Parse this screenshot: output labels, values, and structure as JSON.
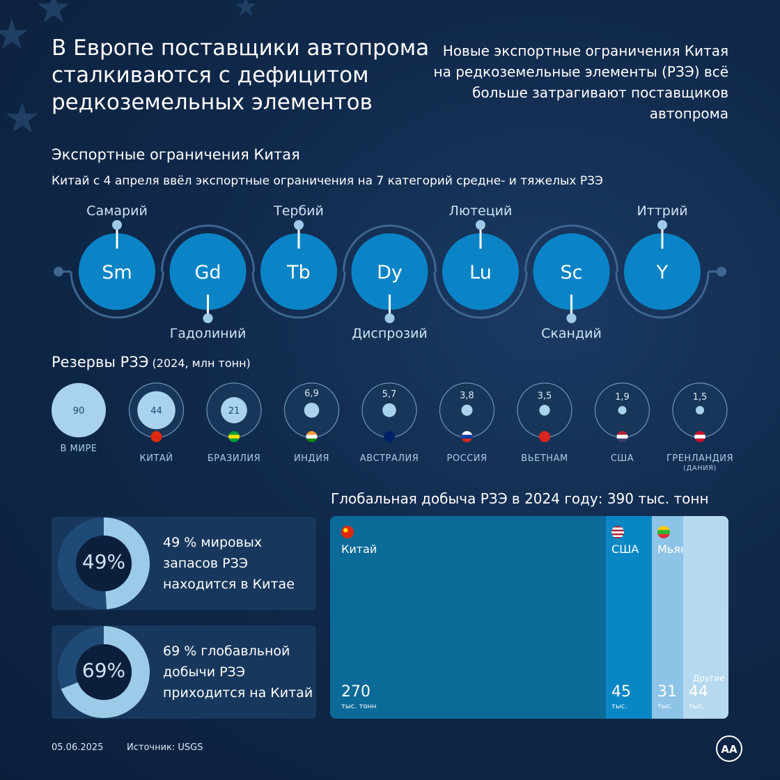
{
  "title": "В Европе поставщики автопрома сталкиваются с дефицитом редкоземельных элементов",
  "intro": "Новые экспортные ограничения Китая на редкоземельные элементы (РЗЭ) всё больше затрагивают поставщиков автопрома",
  "restrictions": {
    "title": "Экспортные ограничения Китая",
    "subtitle": "Китай с 4 апреля ввёл экспортные ограничения на 7 категорий средне- и тяжелых РЗЭ",
    "elements": [
      {
        "symbol": "Sm",
        "name": "Самарий"
      },
      {
        "symbol": "Gd",
        "name": "Гадолиний"
      },
      {
        "symbol": "Tb",
        "name": "Тербий"
      },
      {
        "symbol": "Dy",
        "name": "Диспрозий"
      },
      {
        "symbol": "Lu",
        "name": "Лютеций"
      },
      {
        "symbol": "Sc",
        "name": "Скандий"
      },
      {
        "symbol": "Y",
        "name": "Иттрий"
      }
    ]
  },
  "reserves": {
    "title": "Резервы РЗЭ",
    "unit": "(2024, млн тонн)"
  },
  "production_title": "Глобальная добыча РЗЭ в 2024 году: 390 тыс. тонн",
  "cards": [
    {
      "percent": "49%",
      "text": "49 % мировых запасов РЗЭ находится в Китае",
      "fraction": 0.49
    },
    {
      "percent": "69%",
      "text": "69 % глобавльной добычи РЗЭ приходится на Китай",
      "fraction": 0.69
    }
  ],
  "footer": {
    "date": "05.06.2025",
    "source": "Источник: USGS",
    "logo": "AA"
  },
  "colors": {
    "background": "#10294b",
    "element_circle": "#0a84c6",
    "reserve_fill": "#a8d2ee",
    "china_bar": "#0b6a98",
    "usa_bar": "#0887c4",
    "myanmar_bar": "#8cc3e6",
    "others_bar": "#b5d9ef"
  },
  "chart_data": [
    {
      "type": "bubble",
      "title": "Резервы РЗЭ",
      "unit": "(2024, млн тонн)",
      "categories": [
        "В МИРЕ",
        "КИТАЙ",
        "БРАЗИЛИЯ",
        "ИНДИЯ",
        "АВСТРАЛИЯ",
        "РОССИЯ",
        "ВЬЕТНАМ",
        "США",
        "ГРЕНЛАНДИЯ"
      ],
      "sublabels": [
        "",
        "",
        "",
        "",
        "",
        "",
        "",
        "",
        "(ДАНИЯ)"
      ],
      "values": [
        90,
        44,
        21,
        6.9,
        5.7,
        3.8,
        3.5,
        1.9,
        1.5
      ],
      "value_labels": [
        "90",
        "44",
        "21",
        "6,9",
        "5,7",
        "3,8",
        "3,5",
        "1,9",
        "1,5"
      ],
      "flags": [
        "",
        "china-flag",
        "brazil-flag",
        "india-flag",
        "australia-flag",
        "russia-flag",
        "vietnam-flag",
        "usa-flag",
        "denmark-flag"
      ]
    },
    {
      "type": "treemap",
      "title": "Глобальная добыча РЗЭ в 2024 году: 390 тыс. тонн",
      "total": 390,
      "items": [
        {
          "name": "Китай",
          "value": 270,
          "value_label": "270",
          "unit": "тыс. тонн",
          "flag": "china-flag"
        },
        {
          "name": "США",
          "value": 45,
          "value_label": "45",
          "unit": "тыс.",
          "flag": "usa-flag"
        },
        {
          "name": "Мьянма",
          "value": 31,
          "value_label": "31",
          "unit": "тыс.",
          "flag": "myanmar-flag"
        },
        {
          "name": "Другие",
          "value": 44,
          "value_label": "44",
          "unit": "тыс.",
          "flag": ""
        }
      ]
    }
  ]
}
